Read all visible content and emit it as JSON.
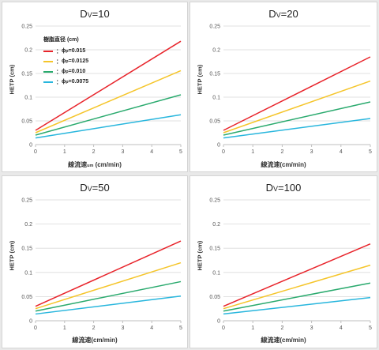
{
  "chart_data": [
    {
      "type": "line",
      "title_main": "D",
      "title_sub": "V",
      "title_value": "=10",
      "xlabel_main": "線流速",
      "xlabel_sub": "um",
      "xlabel_unit": " (cm/min)",
      "ylabel": "HETP (cm)",
      "xlim": [
        0,
        5
      ],
      "ylim": [
        0,
        0.25
      ],
      "xticks": [
        "0",
        "1",
        "2",
        "3",
        "4",
        "5"
      ],
      "yticks": [
        "0",
        "0.05",
        "0.1",
        "0.15",
        "0.2",
        "0.25"
      ],
      "legend": {
        "title": "樹脂直径 (cm)",
        "entries": [
          {
            "prefix": "：",
            "phi": "ϕ",
            "sub": "p",
            "value": "=0.015"
          },
          {
            "prefix": "：",
            "phi": "ϕ",
            "sub": "p",
            "value": "=0.0125"
          },
          {
            "prefix": "：",
            "phi": "ϕ",
            "sub": "p",
            "value": "=0.010"
          },
          {
            "prefix": "：",
            "phi": "ϕ",
            "sub": "p",
            "value": "=0.0075"
          }
        ]
      },
      "series": [
        {
          "color": "#e8242b",
          "x": [
            0,
            5
          ],
          "y": [
            0.03,
            0.218
          ]
        },
        {
          "color": "#f5c52a",
          "x": [
            0,
            5
          ],
          "y": [
            0.025,
            0.156
          ]
        },
        {
          "color": "#2aaa6e",
          "x": [
            0,
            5
          ],
          "y": [
            0.02,
            0.105
          ]
        },
        {
          "color": "#28b6dd",
          "x": [
            0,
            5
          ],
          "y": [
            0.014,
            0.063
          ]
        }
      ]
    },
    {
      "type": "line",
      "title_main": "D",
      "title_sub": "V",
      "title_value": "=20",
      "xlabel_main": "線流速",
      "xlabel_sub": "",
      "xlabel_unit": "(cm/min)",
      "ylabel": "HETP (cm)",
      "xlim": [
        0,
        5
      ],
      "ylim": [
        0,
        0.25
      ],
      "xticks": [
        "0",
        "1",
        "2",
        "3",
        "4",
        "5"
      ],
      "yticks": [
        "0",
        "0.05",
        "0.1",
        "0.15",
        "0.2",
        "0.25"
      ],
      "series": [
        {
          "color": "#e8242b",
          "x": [
            0,
            5
          ],
          "y": [
            0.03,
            0.185
          ]
        },
        {
          "color": "#f5c52a",
          "x": [
            0,
            5
          ],
          "y": [
            0.025,
            0.134
          ]
        },
        {
          "color": "#2aaa6e",
          "x": [
            0,
            5
          ],
          "y": [
            0.02,
            0.09
          ]
        },
        {
          "color": "#28b6dd",
          "x": [
            0,
            5
          ],
          "y": [
            0.014,
            0.055
          ]
        }
      ]
    },
    {
      "type": "line",
      "title_main": "D",
      "title_sub": "V",
      "title_value": "=50",
      "xlabel_main": "線流速",
      "xlabel_sub": "",
      "xlabel_unit": "(cm/min)",
      "ylabel": "HETP (cm)",
      "xlim": [
        0,
        5
      ],
      "ylim": [
        0,
        0.25
      ],
      "xticks": [
        "0",
        "1",
        "2",
        "3",
        "4",
        "5"
      ],
      "yticks": [
        "0",
        "0.05",
        "0.1",
        "0.15",
        "0.2",
        "0.25"
      ],
      "series": [
        {
          "color": "#e8242b",
          "x": [
            0,
            5
          ],
          "y": [
            0.03,
            0.165
          ]
        },
        {
          "color": "#f5c52a",
          "x": [
            0,
            5
          ],
          "y": [
            0.025,
            0.12
          ]
        },
        {
          "color": "#2aaa6e",
          "x": [
            0,
            5
          ],
          "y": [
            0.02,
            0.081
          ]
        },
        {
          "color": "#28b6dd",
          "x": [
            0,
            5
          ],
          "y": [
            0.014,
            0.051
          ]
        }
      ]
    },
    {
      "type": "line",
      "title_main": "D",
      "title_sub": "V",
      "title_value": "=100",
      "xlabel_main": "線流速",
      "xlabel_sub": "",
      "xlabel_unit": "(cm/min)",
      "ylabel": "HETP (cm)",
      "xlim": [
        0,
        5
      ],
      "ylim": [
        0,
        0.25
      ],
      "xticks": [
        "0",
        "1",
        "2",
        "3",
        "4",
        "5"
      ],
      "yticks": [
        "0",
        "0.05",
        "0.1",
        "0.15",
        "0.2",
        "0.25"
      ],
      "series": [
        {
          "color": "#e8242b",
          "x": [
            0,
            5
          ],
          "y": [
            0.03,
            0.159
          ]
        },
        {
          "color": "#f5c52a",
          "x": [
            0,
            5
          ],
          "y": [
            0.025,
            0.115
          ]
        },
        {
          "color": "#2aaa6e",
          "x": [
            0,
            5
          ],
          "y": [
            0.02,
            0.078
          ]
        },
        {
          "color": "#28b6dd",
          "x": [
            0,
            5
          ],
          "y": [
            0.014,
            0.048
          ]
        }
      ]
    }
  ]
}
